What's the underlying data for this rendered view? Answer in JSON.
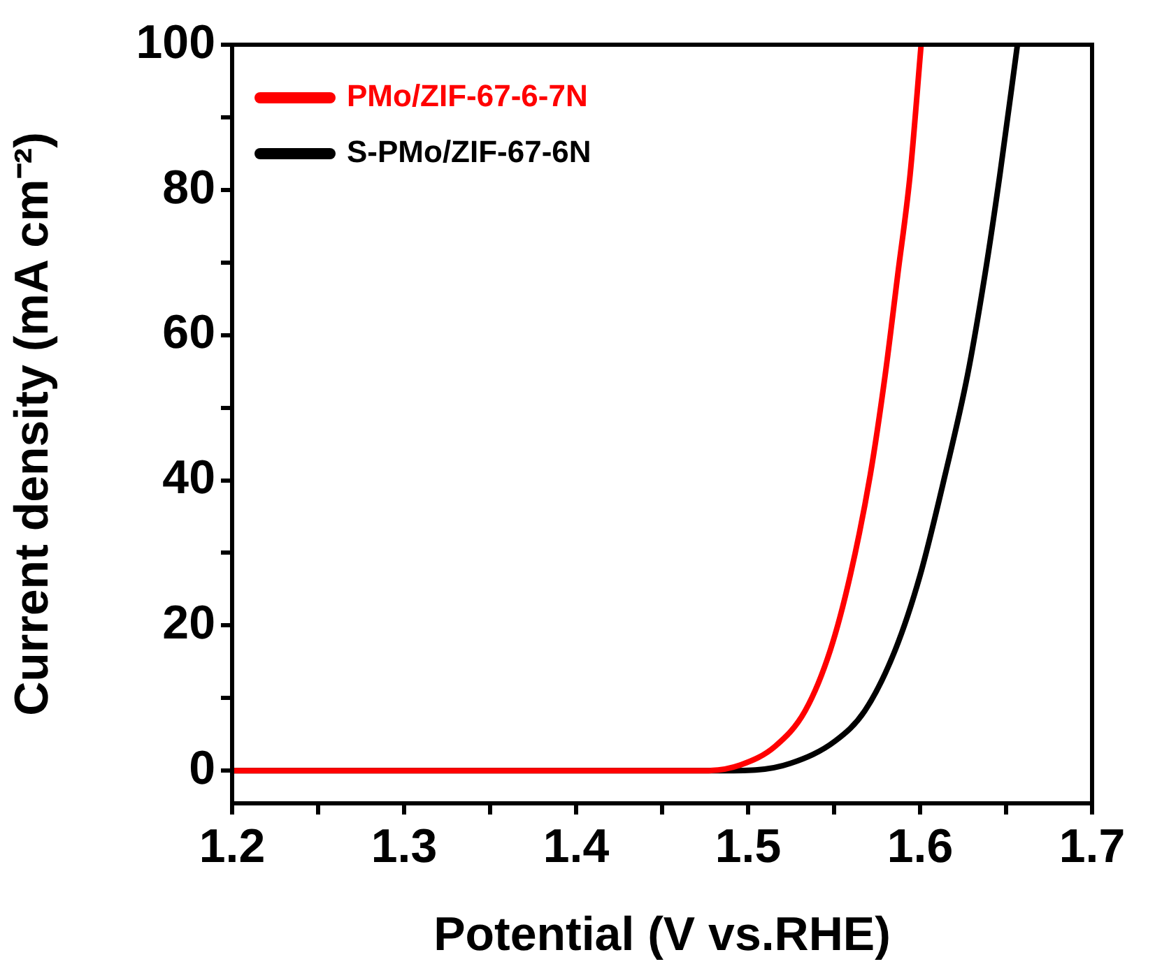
{
  "chart_data": {
    "type": "line",
    "xlabel": "Potential (V vs.RHE)",
    "ylabel": "Current density (mA cm⁻²)",
    "xlim": [
      1.2,
      1.7
    ],
    "ylim": [
      -4.5,
      100
    ],
    "xticks": [
      1.2,
      {
        "value": 1.25,
        "label": null
      },
      1.3,
      {
        "value": 1.35,
        "label": null
      },
      1.4,
      {
        "value": 1.45,
        "label": null
      },
      1.5,
      {
        "value": 1.55,
        "label": null
      },
      1.6,
      {
        "value": 1.65,
        "label": null
      },
      1.7
    ],
    "yticks": [
      0,
      {
        "value": 10,
        "label": null
      },
      20,
      {
        "value": 30,
        "label": null
      },
      40,
      {
        "value": 50,
        "label": null
      },
      60,
      {
        "value": 70,
        "label": null
      },
      80,
      {
        "value": 90,
        "label": null
      },
      100
    ],
    "grid": false,
    "legend": "top left",
    "marker": "none",
    "line_style": "solid",
    "series": [
      {
        "name": "PMo/ZIF-67-6-7N",
        "color": "#ff0000",
        "x": [
          1.2,
          1.3,
          1.4,
          1.4753,
          1.4956,
          1.5159,
          1.5333,
          1.5478,
          1.5594,
          1.571,
          1.5797,
          1.587,
          1.5942,
          1.6006
        ],
        "values": [
          0,
          0,
          0,
          0,
          0.8,
          3.4,
          8.3,
          16.6,
          26.9,
          40.7,
          54.5,
          68.3,
          82.1,
          100
        ]
      },
      {
        "name": "S-PMo/ZIF-67-6N",
        "color": "#000000",
        "x": [
          1.2,
          1.3,
          1.4,
          1.481,
          1.5043,
          1.5246,
          1.5507,
          1.568,
          1.5855,
          1.6,
          1.6145,
          1.6276,
          1.6377,
          1.6464,
          1.6566
        ],
        "values": [
          0,
          0,
          0,
          0,
          0.1,
          1.0,
          4.1,
          8.3,
          16.6,
          26.9,
          40.7,
          54.5,
          68.3,
          82.1,
          100
        ]
      }
    ]
  }
}
